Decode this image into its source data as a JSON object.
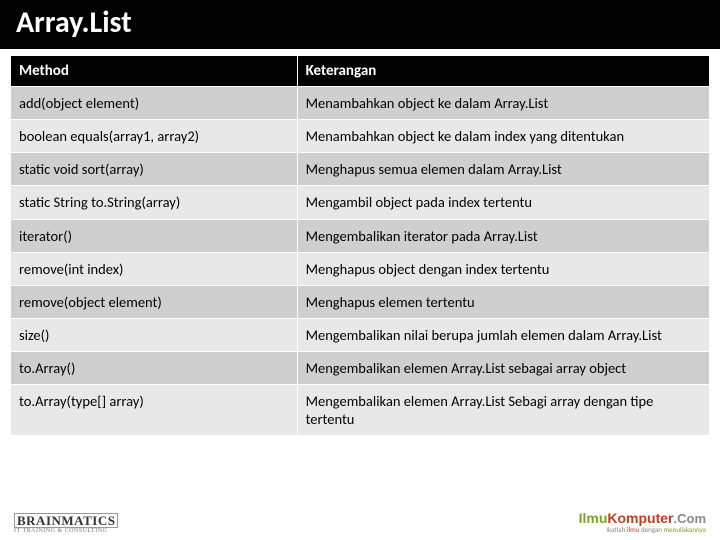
{
  "title": "Array.List",
  "table": {
    "columns": [
      "Method",
      "Keterangan"
    ],
    "rows": [
      [
        "add(object element)",
        "Menambahkan object ke dalam Array.List"
      ],
      [
        "boolean equals(array1, array2)",
        "Menambahkan object ke dalam index yang ditentukan"
      ],
      [
        "static void sort(array)",
        "Menghapus semua elemen dalam Array.List"
      ],
      [
        "static String to.String(array)",
        "Mengambil object pada index tertentu"
      ],
      [
        "iterator()",
        "Mengembalikan iterator pada Array.List"
      ],
      [
        "remove(int index)",
        "Menghapus object dengan index tertentu"
      ],
      [
        "remove(object element)",
        "Menghapus elemen tertentu"
      ],
      [
        "size()",
        "Mengembalikan nilai berupa jumlah elemen dalam Array.List"
      ],
      [
        "to.Array()",
        "Mengembalikan elemen Array.List sebagai array object"
      ],
      [
        "to.Array(type[] array)",
        "Mengembalikan elemen Array.List Sebagi array dengan tipe tertentu"
      ]
    ],
    "col_widths_pct": [
      41,
      59
    ],
    "header_bg": "#000000",
    "header_fg": "#ffffff",
    "row_odd_bg": "#cfcfcf",
    "row_even_bg": "#e8e8e8",
    "border_color": "#ffffff",
    "font_size_header": 15,
    "font_size_cell": 14.5
  },
  "footer": {
    "left_brand": "BRAINMATICS",
    "left_sub": "IT TRAINING & CONSULTING",
    "right_site_a": "Ilmu",
    "right_site_b": "Komputer",
    "right_site_c": ".Com",
    "right_tag_pre": "Ikatlah ",
    "right_tag_h1": "ilmu",
    "right_tag_mid": " dengan ",
    "right_tag_h2": "menuliskannya"
  },
  "colors": {
    "header_bar_bg": "#000000",
    "header_bar_fg": "#ffffff",
    "page_bg": "#ffffff"
  }
}
